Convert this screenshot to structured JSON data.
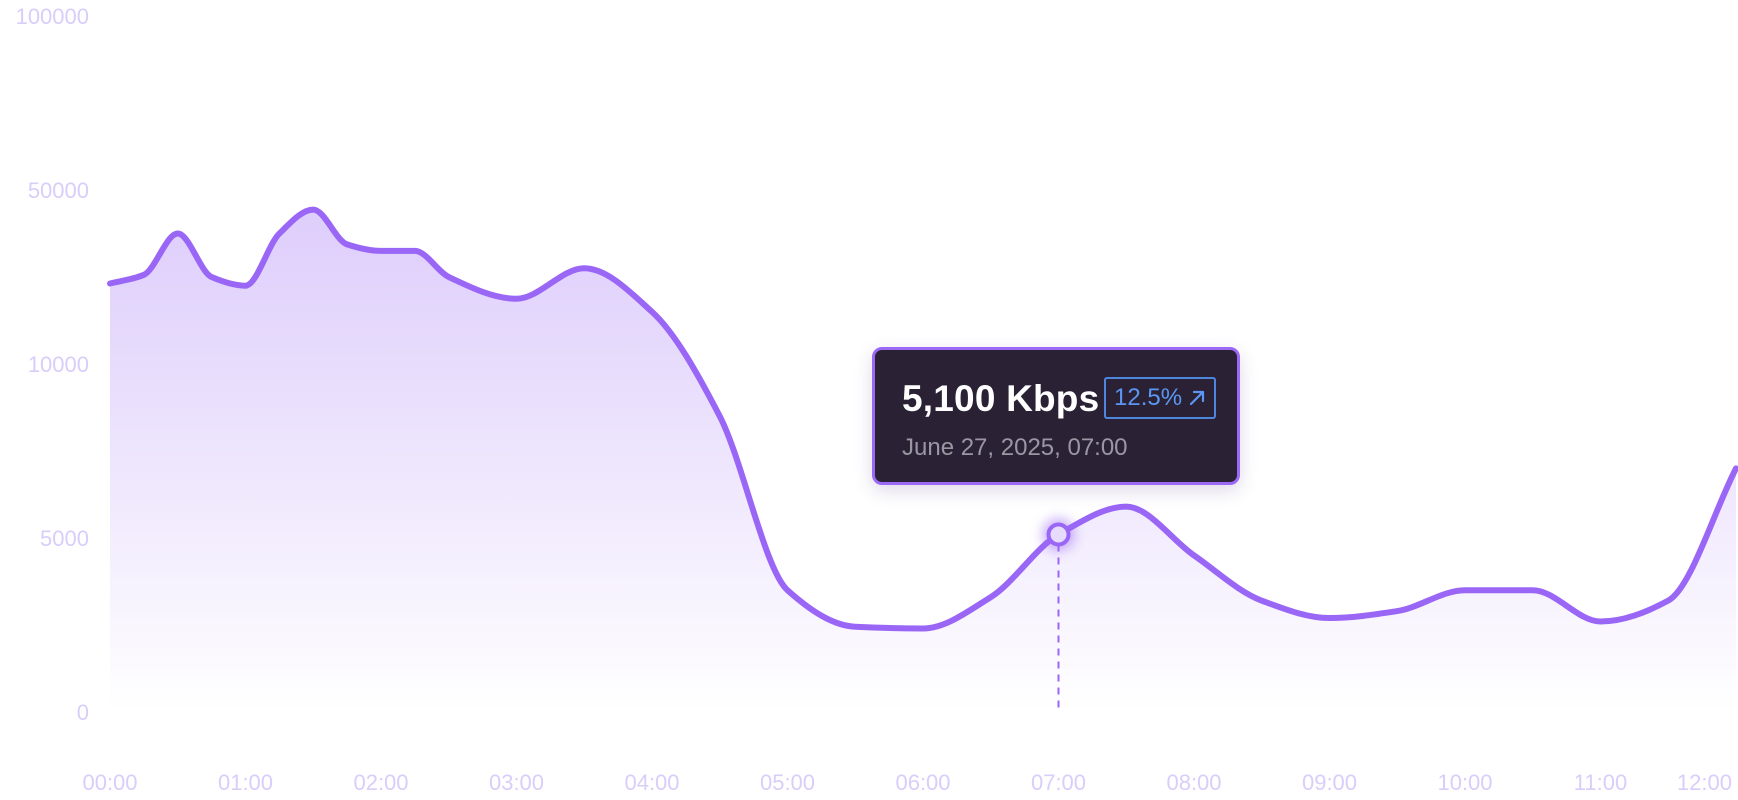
{
  "chart_data": {
    "type": "area",
    "title": "",
    "xlabel": "",
    "ylabel": "",
    "categories": [
      "00:00",
      "01:00",
      "02:00",
      "03:00",
      "04:00",
      "05:00",
      "06:00",
      "07:00",
      "08:00",
      "09:00",
      "10:00",
      "11:00",
      "12:00"
    ],
    "y_ticks": [
      "0",
      "5000",
      "10000",
      "50000",
      "100000"
    ],
    "y_scale": "non-linear (0, 5000, 10000, 50000, 100000 evenly spaced)",
    "grid": false,
    "series": [
      {
        "color": "#9a66f6",
        "points": [
          {
            "x": "00:00",
            "y": 28500
          },
          {
            "x": "00:15",
            "y": 30500
          },
          {
            "x": "00:30",
            "y": 40000
          },
          {
            "x": "00:45",
            "y": 30000
          },
          {
            "x": "01:00",
            "y": 28000
          },
          {
            "x": "01:15",
            "y": 40000
          },
          {
            "x": "01:30",
            "y": 45500
          },
          {
            "x": "01:45",
            "y": 37500
          },
          {
            "x": "02:00",
            "y": 36000
          },
          {
            "x": "02:15",
            "y": 36000
          },
          {
            "x": "02:30",
            "y": 30000
          },
          {
            "x": "03:00",
            "y": 25000
          },
          {
            "x": "03:30",
            "y": 32000
          },
          {
            "x": "04:00",
            "y": 22000
          },
          {
            "x": "04:30",
            "y": 8500
          },
          {
            "x": "05:00",
            "y": 3500
          },
          {
            "x": "05:30",
            "y": 2450
          },
          {
            "x": "06:00",
            "y": 2400
          },
          {
            "x": "06:30",
            "y": 3300
          },
          {
            "x": "07:00",
            "y": 5100
          },
          {
            "x": "07:30",
            "y": 5900
          },
          {
            "x": "08:00",
            "y": 4500
          },
          {
            "x": "08:30",
            "y": 3200
          },
          {
            "x": "09:00",
            "y": 2700
          },
          {
            "x": "09:30",
            "y": 2900
          },
          {
            "x": "10:00",
            "y": 3500
          },
          {
            "x": "10:30",
            "y": 3500
          },
          {
            "x": "11:00",
            "y": 2600
          },
          {
            "x": "11:30",
            "y": 3200
          },
          {
            "x": "12:00",
            "y": 7000
          }
        ]
      }
    ],
    "highlight": {
      "x": "07:00",
      "y": 5100
    },
    "tooltip": {
      "value": "5,100 Kbps",
      "change": "12.5%",
      "change_icon": "arrow-up-right-icon",
      "date": "June 27, 2025, 07:00"
    }
  },
  "colors": {
    "line": "#9a66f6",
    "area_top": "#dccbfb",
    "area_bottom": "#ffffff",
    "axis_text": "#d9cdf9",
    "tooltip_bg": "#2a2135",
    "tooltip_border": "#9a6af6",
    "badge": "#5b97f2"
  }
}
